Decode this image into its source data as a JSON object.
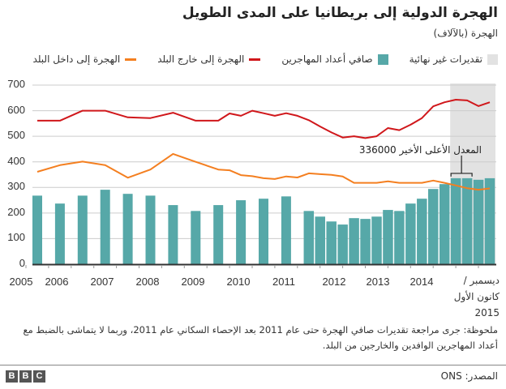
{
  "header": {
    "title": "الهجرة الدولية إلى بريطانيا على المدى الطويل",
    "subtitle": "الهجرة (بالآلاف)"
  },
  "legend": {
    "provisional": "تقديرات غير نهائية",
    "net": "صافي أعداد المهاجرين",
    "emigration": "الهجرة إلى خارج البلد",
    "immigration": "الهجرة إلى داخل البلد"
  },
  "colors": {
    "net": "#56a8a8",
    "emigration": "#d0171b",
    "immigration": "#f47f20",
    "provisional": "#e2e2e2"
  },
  "chart_data": {
    "type": "bar+line",
    "ylim": [
      0,
      700
    ],
    "yticks": [
      "0",
      "100",
      "200",
      "300",
      "400",
      "500",
      "600",
      "700"
    ],
    "xticks": [
      "2005",
      "2006",
      "2007",
      "2008",
      "2009",
      "2010",
      "2011",
      "2012",
      "2013",
      "2014"
    ],
    "xlast_label": "ديسمبر /كانون الأول 2015",
    "grid": true,
    "provisional_range": [
      2014.125,
      2015.125
    ],
    "series": [
      {
        "name": "صافي أعداد المهاجرين",
        "type": "bar",
        "x": [
          2005,
          2005.5,
          2006,
          2006.5,
          2007,
          2007.5,
          2008,
          2008.5,
          2009,
          2009.5,
          2010,
          2010.5,
          2011,
          2011.25,
          2011.5,
          2011.75,
          2012,
          2012.25,
          2012.5,
          2012.75,
          2013,
          2013.25,
          2013.5,
          2013.75,
          2014,
          2014.25,
          2014.5,
          2014.75,
          2015
        ],
        "values": [
          268,
          237,
          268,
          291,
          275,
          268,
          231,
          208,
          231,
          250,
          256,
          265,
          208,
          186,
          167,
          155,
          180,
          177,
          186,
          212,
          208,
          237,
          256,
          294,
          313,
          336,
          336,
          330,
          336
        ]
      },
      {
        "name": "الهجرة إلى خارج البلد",
        "type": "line",
        "x": [
          2005,
          2005.5,
          2006,
          2006.5,
          2007,
          2007.5,
          2008,
          2008.5,
          2009,
          2009.25,
          2009.5,
          2009.75,
          2010,
          2010.25,
          2010.5,
          2010.75,
          2011,
          2011.25,
          2011.5,
          2011.75,
          2012,
          2012.25,
          2012.5,
          2012.75,
          2013,
          2013.25,
          2013.5,
          2013.75,
          2014,
          2014.25,
          2014.5,
          2014.75,
          2015
        ],
        "values": [
          561,
          561,
          600,
          600,
          574,
          571,
          592,
          561,
          561,
          589,
          580,
          600,
          590,
          580,
          590,
          580,
          563,
          538,
          515,
          495,
          500,
          493,
          500,
          532,
          524,
          545,
          571,
          617,
          633,
          643,
          640,
          618,
          633
        ]
      },
      {
        "name": "الهجرة إلى داخل البلد",
        "type": "line",
        "x": [
          2005,
          2005.5,
          2006,
          2006.5,
          2007,
          2007.5,
          2008,
          2008.5,
          2009,
          2009.25,
          2009.5,
          2009.75,
          2010,
          2010.25,
          2010.5,
          2010.75,
          2011,
          2011.25,
          2011.5,
          2011.75,
          2012,
          2012.25,
          2012.5,
          2012.75,
          2013,
          2013.25,
          2013.5,
          2013.75,
          2014,
          2014.25,
          2014.5,
          2014.75,
          2015
        ],
        "values": [
          361,
          387,
          401,
          387,
          338,
          370,
          431,
          400,
          370,
          367,
          348,
          344,
          336,
          333,
          343,
          339,
          355,
          352,
          349,
          343,
          318,
          318,
          318,
          324,
          318,
          318,
          318,
          327,
          318,
          308,
          297,
          291,
          296
        ]
      }
    ],
    "annotation": {
      "text": "المعدل الأعلى الأخير 336000",
      "x": [
        2014.25,
        2014.5
      ],
      "value": 336
    }
  },
  "note": "ملحوظة: جرى مراجعة تقديرات صافي الهجرة حتى عام 2011 بعد الإحصاء السكاني عام 2011، وربما لا يتماشى بالضبط مع أعداد المهاجرين الوافدين والخارجين من البلد.",
  "footer": {
    "source": "المصدر: ONS",
    "logo": [
      "B",
      "B",
      "C"
    ]
  }
}
